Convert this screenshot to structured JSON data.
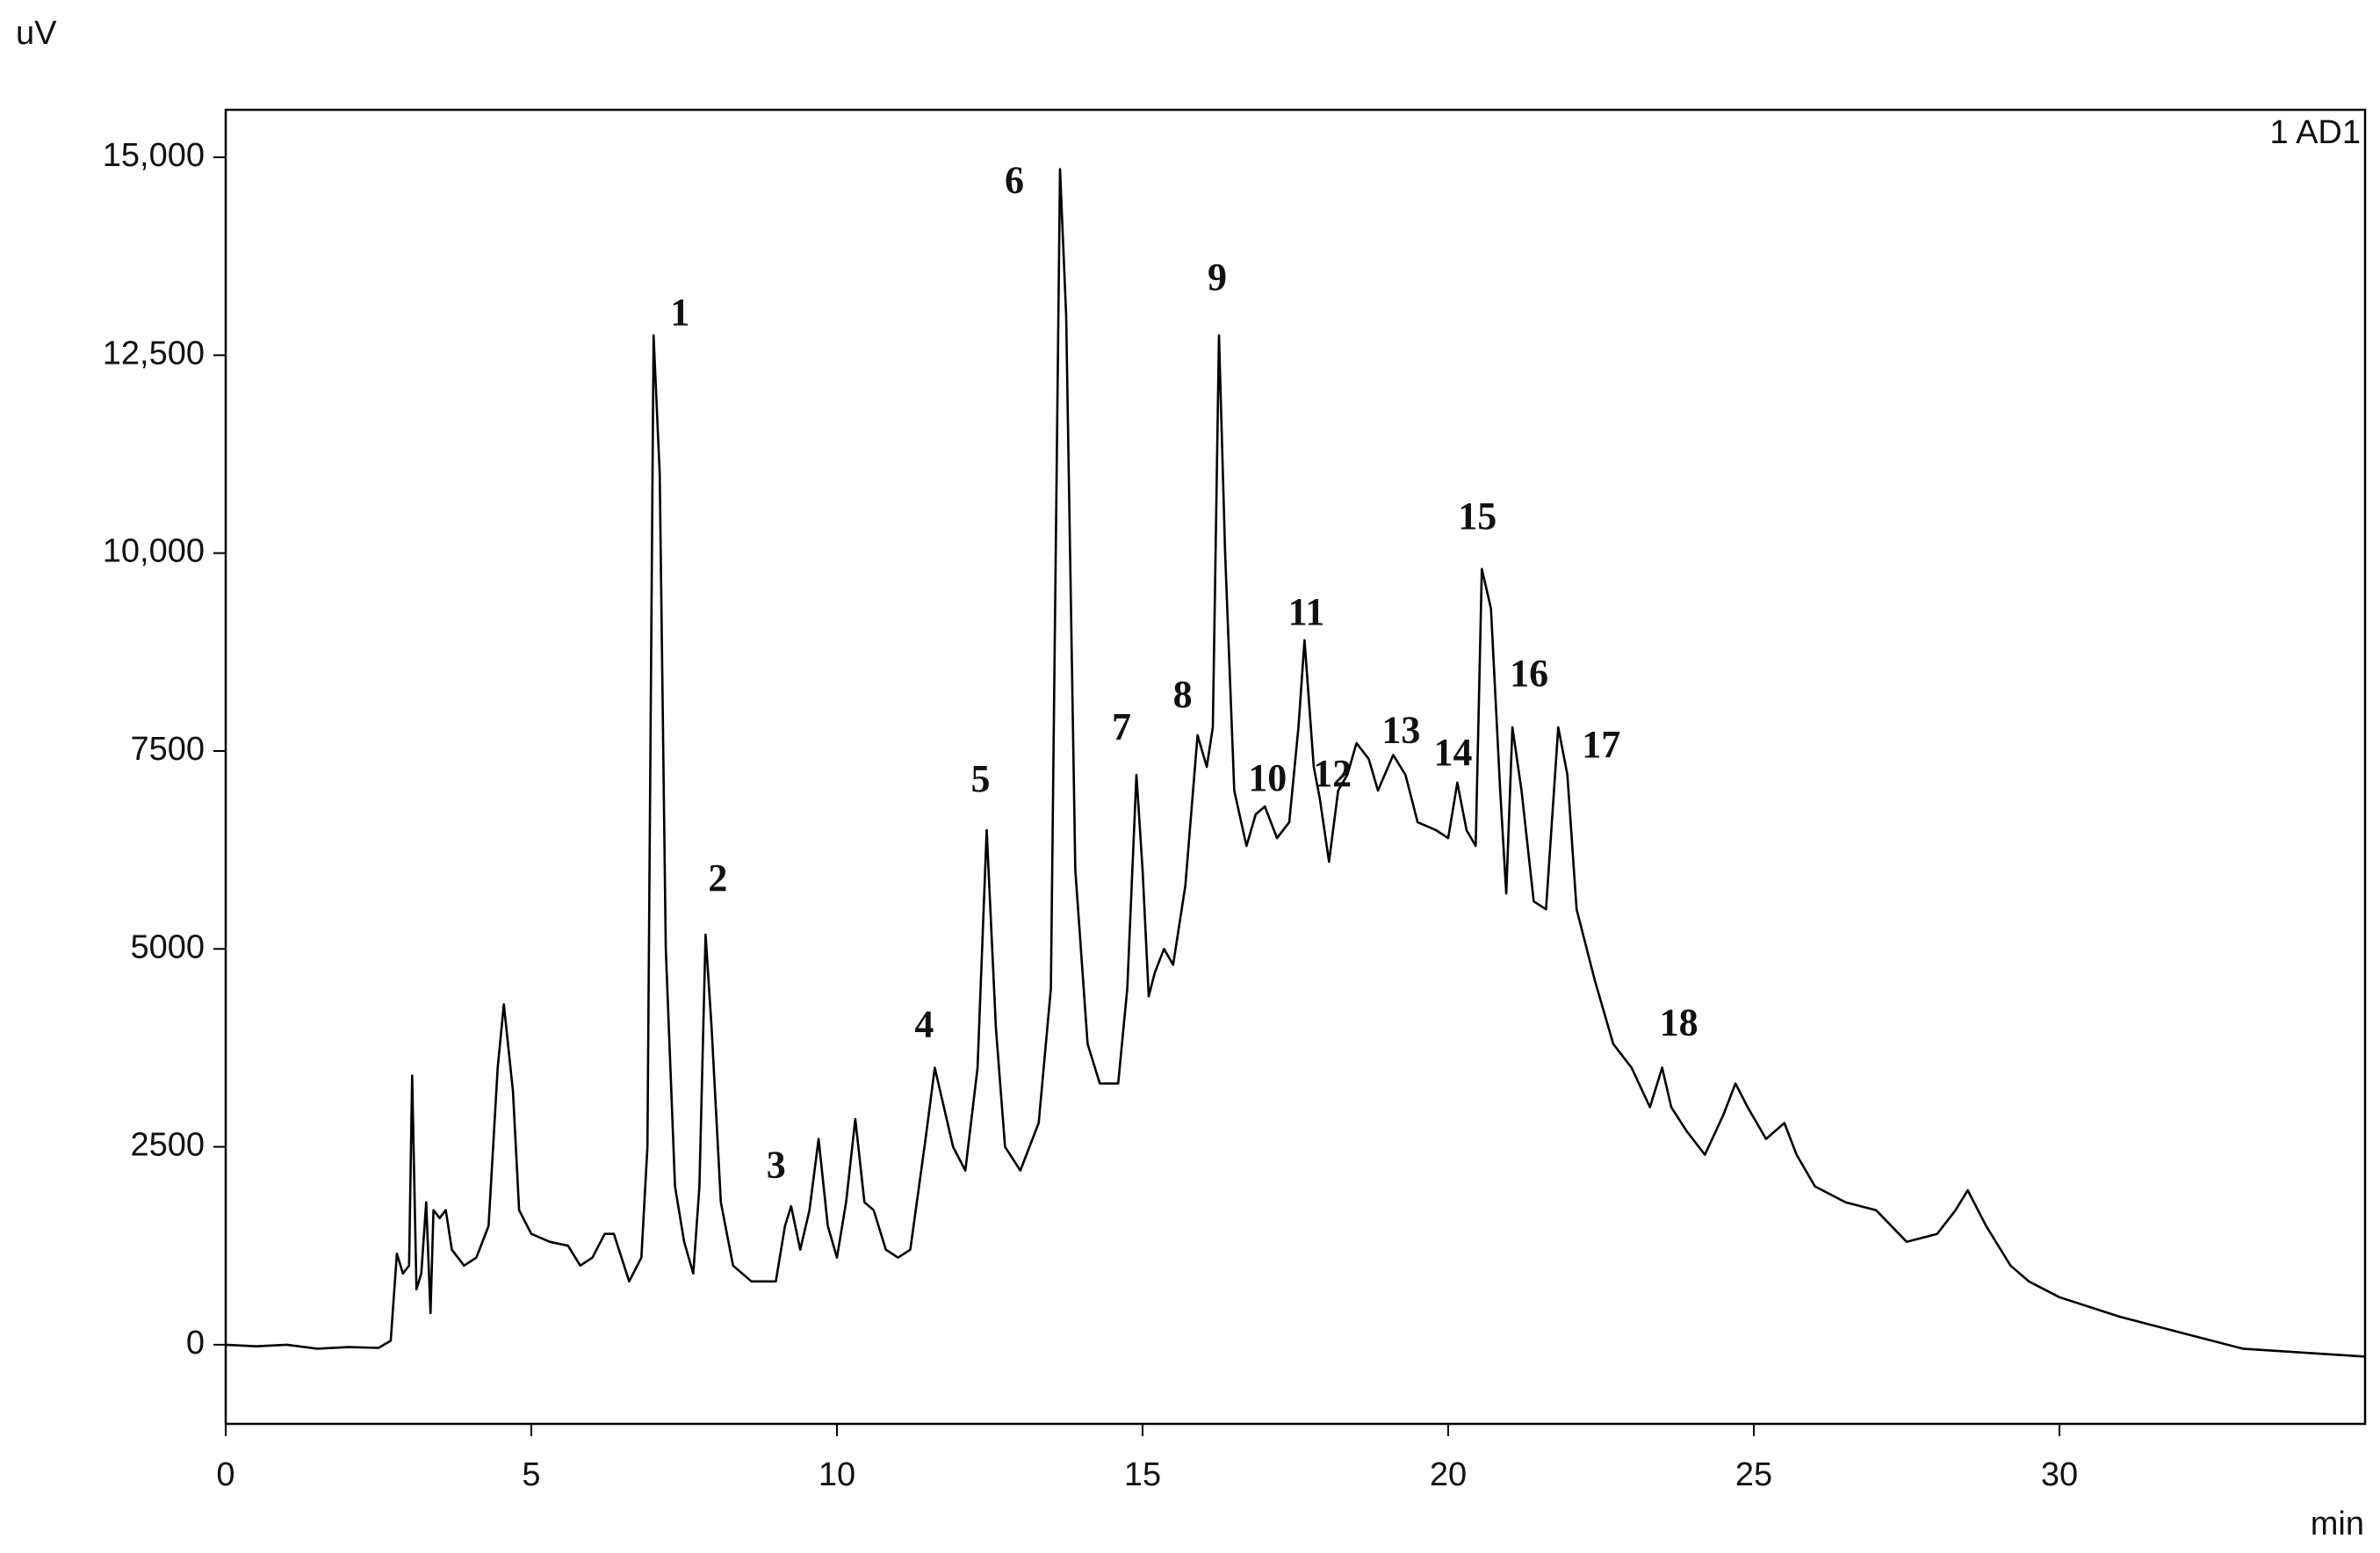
{
  "chart_data": {
    "type": "line",
    "y_label": "uV",
    "x_label": "min",
    "annotation": "1 AD1",
    "x": [
      0,
      0.5,
      1,
      1.5,
      2,
      2.5,
      2.7,
      2.8,
      2.9,
      3.0,
      3.05,
      3.12,
      3.2,
      3.28,
      3.35,
      3.4,
      3.5,
      3.6,
      3.7,
      3.9,
      4.1,
      4.3,
      4.45,
      4.55,
      4.7,
      4.8,
      5.0,
      5.3,
      5.6,
      5.8,
      6.0,
      6.2,
      6.35,
      6.6,
      6.8,
      6.9,
      7.0,
      7.1,
      7.2,
      7.35,
      7.5,
      7.65,
      7.75,
      7.85,
      7.95,
      8.1,
      8.3,
      8.6,
      9.0,
      9.15,
      9.25,
      9.4,
      9.55,
      9.7,
      9.85,
      10.0,
      10.15,
      10.3,
      10.45,
      10.6,
      10.8,
      11.0,
      11.2,
      11.45,
      11.6,
      11.75,
      11.9,
      12.1,
      12.3,
      12.45,
      12.6,
      12.75,
      13.0,
      13.3,
      13.5,
      13.65,
      13.75,
      13.9,
      14.1,
      14.3,
      14.6,
      14.75,
      14.9,
      15.0,
      15.1,
      15.2,
      15.35,
      15.5,
      15.7,
      15.9,
      16.05,
      16.15,
      16.25,
      16.35,
      16.5,
      16.7,
      16.85,
      17.0,
      17.2,
      17.4,
      17.55,
      17.65,
      17.8,
      17.9,
      18.05,
      18.2,
      18.35,
      18.5,
      18.7,
      18.85,
      19.1,
      19.3,
      19.5,
      19.8,
      20.0,
      20.15,
      20.3,
      20.45,
      20.55,
      20.7,
      20.85,
      20.95,
      21.05,
      21.2,
      21.4,
      21.6,
      21.8,
      21.95,
      22.1,
      22.4,
      22.7,
      23.0,
      23.3,
      23.5,
      23.65,
      23.9,
      24.2,
      24.5,
      24.7,
      24.9,
      25.2,
      25.5,
      25.7,
      26.0,
      26.5,
      27.0,
      27.5,
      28.0,
      28.3,
      28.5,
      28.8,
      29.2,
      29.5,
      30.0,
      31,
      32,
      33,
      34,
      35
    ],
    "series": [
      {
        "color": "#000000",
        "values": [
          0,
          -20,
          0,
          -50,
          -30,
          -40,
          50,
          1150,
          900,
          1000,
          3400,
          700,
          900,
          1800,
          400,
          1700,
          1600,
          1700,
          1200,
          1000,
          1100,
          1500,
          3500,
          4300,
          3200,
          1700,
          1400,
          1300,
          1250,
          1000,
          1100,
          1400,
          1400,
          800,
          1100,
          2500,
          12750,
          11000,
          5000,
          2000,
          1300,
          900,
          2000,
          5180,
          4000,
          1800,
          1000,
          800,
          800,
          1500,
          1750,
          1200,
          1700,
          2600,
          1500,
          1100,
          1800,
          2850,
          1800,
          1700,
          1200,
          1100,
          1200,
          2600,
          3500,
          3000,
          2500,
          2200,
          3500,
          6500,
          4000,
          2500,
          2200,
          2800,
          4500,
          14850,
          13000,
          6000,
          3800,
          3300,
          3300,
          4500,
          7200,
          6000,
          4400,
          4700,
          5000,
          4800,
          5800,
          7700,
          7300,
          7800,
          12750,
          10000,
          7000,
          6300,
          6700,
          6800,
          6400,
          6600,
          7800,
          8900,
          7300,
          6900,
          6100,
          7000,
          7200,
          7600,
          7400,
          7000,
          7450,
          7200,
          6600,
          6500,
          6400,
          7100,
          6500,
          6300,
          9800,
          9300,
          7000,
          5700,
          7800,
          7000,
          5600,
          5500,
          7800,
          7200,
          5500,
          4600,
          3800,
          3500,
          3000,
          3500,
          3000,
          2700,
          2400,
          2900,
          3300,
          3000,
          2600,
          2800,
          2400,
          2000,
          1800,
          1700,
          1300,
          1400,
          1700,
          1950,
          1500,
          1000,
          800,
          600,
          350,
          150,
          -50,
          -100,
          -150
        ]
      }
    ],
    "peaks": [
      {
        "label": "1",
        "x": 7.0,
        "y": 12750
      },
      {
        "label": "2",
        "x": 7.85,
        "y": 5180
      },
      {
        "label": "3",
        "x": 9.25,
        "y": 1750
      },
      {
        "label": "4",
        "x": 11.6,
        "y": 3500
      },
      {
        "label": "5",
        "x": 12.45,
        "y": 6500
      },
      {
        "label": "6",
        "x": 13.65,
        "y": 14850
      },
      {
        "label": "7",
        "x": 14.9,
        "y": 7200
      },
      {
        "label": "8",
        "x": 15.9,
        "y": 7700
      },
      {
        "label": "9",
        "x": 16.25,
        "y": 12750
      },
      {
        "label": "10",
        "x": 17.0,
        "y": 6800
      },
      {
        "label": "11",
        "x": 17.65,
        "y": 8900
      },
      {
        "label": "12",
        "x": 18.35,
        "y": 7200
      },
      {
        "label": "13",
        "x": 19.1,
        "y": 7450
      },
      {
        "label": "14",
        "x": 20.15,
        "y": 7100
      },
      {
        "label": "15",
        "x": 20.55,
        "y": 9800
      },
      {
        "label": "16",
        "x": 21.05,
        "y": 7800
      },
      {
        "label": "17",
        "x": 21.8,
        "y": 7800
      },
      {
        "label": "18",
        "x": 23.5,
        "y": 3500
      }
    ],
    "xlim": [
      0,
      35
    ],
    "ylim": [
      -1000,
      15600
    ],
    "xticks": [
      0,
      5,
      10,
      15,
      20,
      25,
      30
    ],
    "yticks": [
      0,
      2500,
      5000,
      7500,
      {
        "value": 10000,
        "label": "10,000"
      },
      {
        "value": 12500,
        "label": "12,500"
      },
      {
        "value": 15000,
        "label": "15,000"
      }
    ],
    "grid": false
  }
}
